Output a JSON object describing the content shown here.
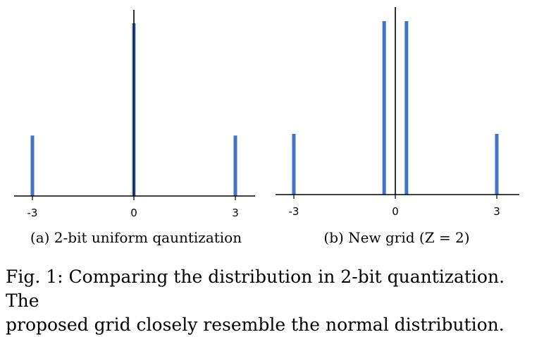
{
  "figure": {
    "caption": "Fig. 1: Comparing the distribution in 2-bit quantization. The\nproposed grid closely resemble the normal distribution."
  },
  "colors": {
    "bar": "#4472c4",
    "axis": "#000000"
  },
  "chart_data": [
    {
      "type": "bar",
      "subcaption": "(a) 2-bit uniform qauntization",
      "x": [
        -3,
        0,
        3
      ],
      "values": [
        0.35,
        1.0,
        0.35
      ],
      "xlim": [
        -3.0,
        3.0
      ],
      "xticks": [
        -3,
        0,
        3
      ],
      "xtick_labels": [
        "-3",
        "0",
        "3"
      ],
      "ylim": [
        0,
        1.0
      ],
      "title": "",
      "xlabel": "",
      "ylabel": "",
      "grid": false,
      "legend": "none"
    },
    {
      "type": "bar",
      "subcaption": "(b) New grid (Z = 2)",
      "x": [
        -3,
        -0.33,
        0.33,
        3
      ],
      "values": [
        0.35,
        1.0,
        1.0,
        0.35
      ],
      "xlim": [
        -3.0,
        3.0
      ],
      "xticks": [
        -3,
        0,
        3
      ],
      "xtick_labels": [
        "-3",
        "0",
        "3"
      ],
      "ylim": [
        0,
        1.0
      ],
      "title": "",
      "xlabel": "",
      "ylabel": "",
      "grid": false,
      "legend": "none"
    }
  ]
}
